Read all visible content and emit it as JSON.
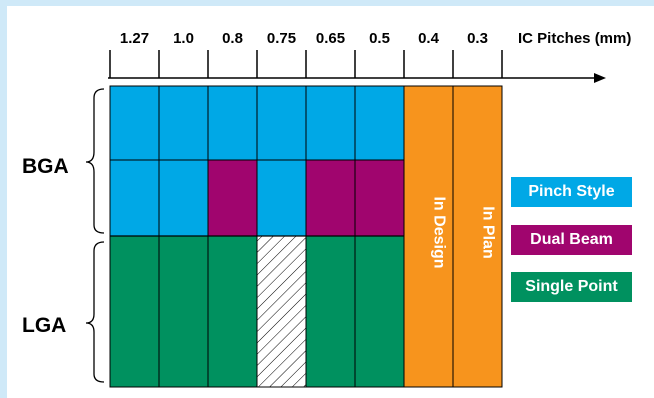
{
  "header": {
    "axis_title": "IC Pitches (mm)"
  },
  "pitches": [
    "1.27",
    "1.0",
    "0.8",
    "0.75",
    "0.65",
    "0.5",
    "0.4",
    "0.3"
  ],
  "rows": {
    "bga_label": "BGA",
    "lga_label": "LGA"
  },
  "columns": [
    {
      "pitch": "1.27",
      "bga": [
        "pinch",
        "pinch"
      ],
      "lga": "single"
    },
    {
      "pitch": "1.0",
      "bga": [
        "pinch",
        "pinch"
      ],
      "lga": "single"
    },
    {
      "pitch": "0.8",
      "bga": [
        "pinch",
        "dual"
      ],
      "lga": "single"
    },
    {
      "pitch": "0.75",
      "bga": [
        "pinch",
        "pinch"
      ],
      "lga": "hatched"
    },
    {
      "pitch": "0.65",
      "bga": [
        "pinch",
        "dual"
      ],
      "lga": "single"
    },
    {
      "pitch": "0.5",
      "bga": [
        "pinch",
        "dual"
      ],
      "lga": "single"
    },
    {
      "pitch": "0.4",
      "status": "In Design"
    },
    {
      "pitch": "0.3",
      "status": "In Plan"
    }
  ],
  "legend": [
    {
      "key": "pinch",
      "label": "Pinch Style",
      "color": "#00a8e6"
    },
    {
      "key": "dual",
      "label": "Dual Beam",
      "color": "#a0056e"
    },
    {
      "key": "single",
      "label": "Single Point",
      "color": "#00915f"
    }
  ],
  "status_color": "#f7941d"
}
